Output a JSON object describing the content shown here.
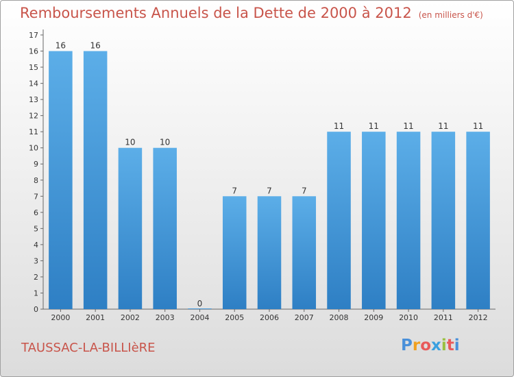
{
  "header": {
    "title": "Remboursements Annuels de la Dette de 2000 à 2012",
    "subtitle": "(en milliers d'€)"
  },
  "footer": {
    "commune": "TAUSSAC-LA-BILLIèRE",
    "brand": {
      "letters": [
        "P",
        "r",
        "o",
        "x",
        "i",
        "t",
        "i"
      ],
      "colors": [
        "#4a90d9",
        "#f0a020",
        "#e85a5a",
        "#3aa0e0",
        "#9ac040",
        "#e85a5a",
        "#4a90d9"
      ]
    }
  },
  "chart_data": {
    "type": "bar",
    "title": "Remboursements Annuels de la Dette de 2000 à 2012",
    "categories": [
      "2000",
      "2001",
      "2002",
      "2003",
      "2004",
      "2005",
      "2006",
      "2007",
      "2008",
      "2009",
      "2010",
      "2011",
      "2012"
    ],
    "values": [
      16,
      16,
      10,
      10,
      0,
      7,
      7,
      7,
      11,
      11,
      11,
      11,
      11
    ],
    "data_labels": [
      "16",
      "16",
      "10",
      "10",
      "0",
      "7",
      "7",
      "7",
      "11",
      "11",
      "11",
      "11",
      "11"
    ],
    "yticks": [
      "0",
      "1",
      "2",
      "3",
      "4",
      "5",
      "6",
      "7",
      "8",
      "9",
      "10",
      "11",
      "12",
      "13",
      "14",
      "15",
      "16",
      "17"
    ],
    "ylim": [
      0,
      17
    ],
    "grid": false,
    "bar_color_light": "#5caee8",
    "bar_color_dark": "#2e7fc4"
  }
}
